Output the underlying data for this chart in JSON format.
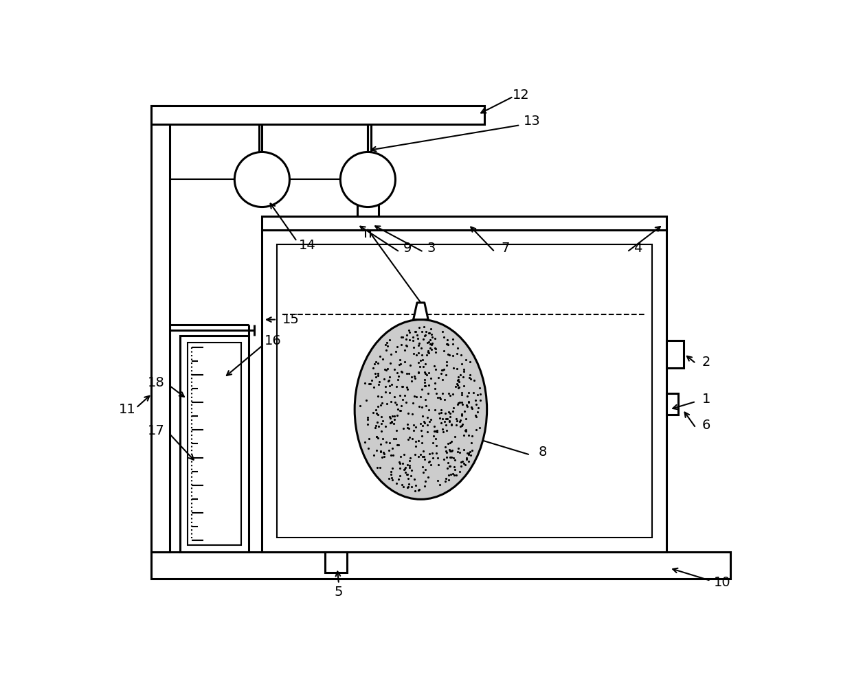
{
  "bg_color": "#ffffff",
  "lc": "#000000",
  "lw": 2.2,
  "tlw": 1.5,
  "fs": 14,
  "fig_w": 12.4,
  "fig_h": 9.92,
  "dpi": 100
}
